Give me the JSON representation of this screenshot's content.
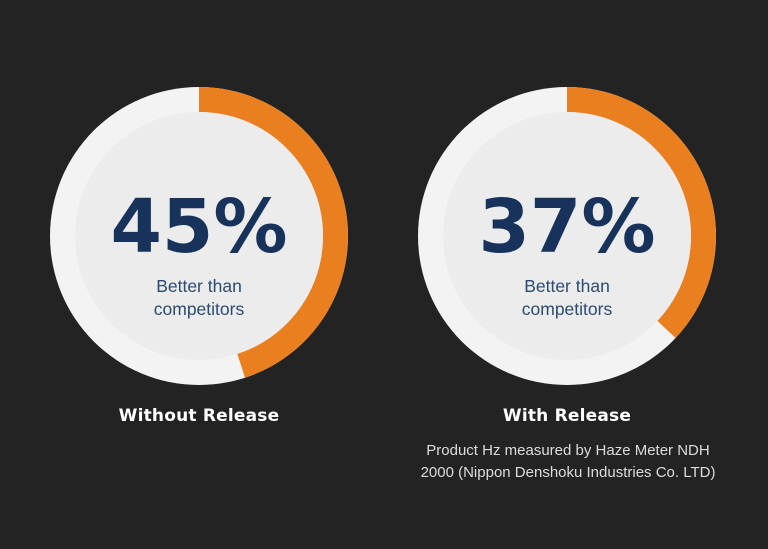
{
  "chart_data": {
    "type": "pie",
    "gauges": [
      {
        "value_label": "45%",
        "fill_percent": 45,
        "subtitle_lines": [
          "Better than",
          "competitors"
        ],
        "caption": "Without Release"
      },
      {
        "value_label": "37%",
        "fill_percent": 37,
        "subtitle_lines": [
          "Better than",
          "competitors"
        ],
        "caption": "With Release"
      }
    ],
    "footnote_lines": [
      "Product Hz measured by Haze Meter NDH",
      "2000 (Nippon Denshoku Industries Co. LTD)"
    ]
  },
  "colors": {
    "background": "#232323",
    "accent_orange": "#ea7f20",
    "ring": "#f2f2f2",
    "inner_face": "#ececec",
    "number_text": "#17335c",
    "subtitle_text": "#2c4a72",
    "caption_text": "#ffffff",
    "footnote_text": "#dcdcdc"
  }
}
